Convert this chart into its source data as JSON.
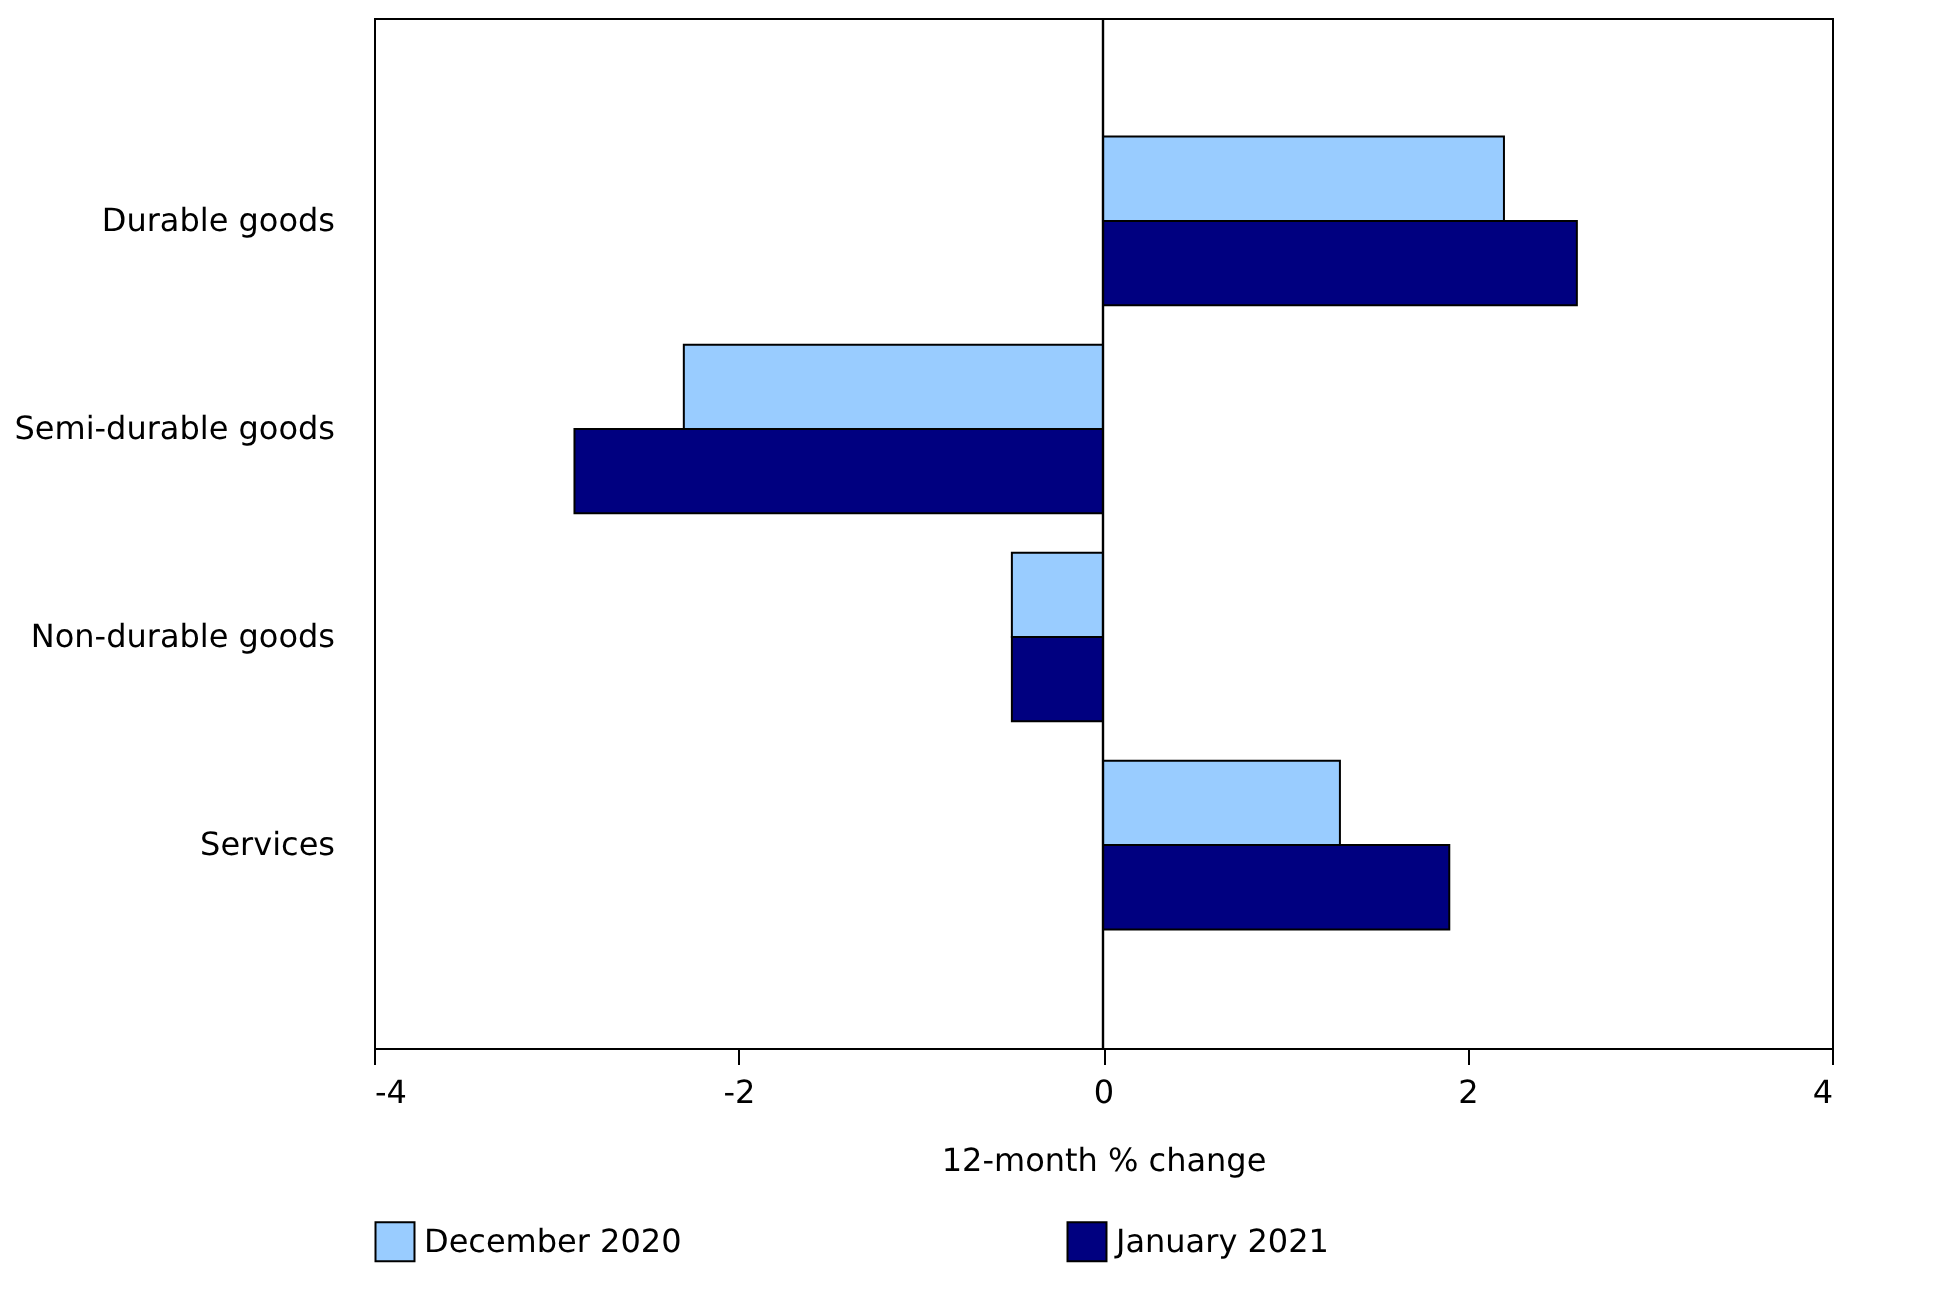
{
  "chart_data": {
    "type": "bar",
    "orientation": "horizontal",
    "xlabel": "12-month % change",
    "categories": [
      "Durable goods",
      "Semi-durable goods",
      "Non-durable goods",
      "Services"
    ],
    "series": [
      {
        "name": "December 2020",
        "color": "#99ccff",
        "values": [
          2.2,
          -2.3,
          -0.5,
          1.3
        ]
      },
      {
        "name": "January 2021",
        "color": "#000080",
        "values": [
          2.6,
          -2.9,
          -0.5,
          1.9
        ]
      }
    ],
    "xlim": [
      -4,
      4
    ],
    "xticks": [
      -4,
      -2,
      0,
      2,
      4
    ],
    "ref_lines": [
      {
        "axis": "x",
        "value": 0
      }
    ],
    "grid": false,
    "legend": "bottom"
  }
}
